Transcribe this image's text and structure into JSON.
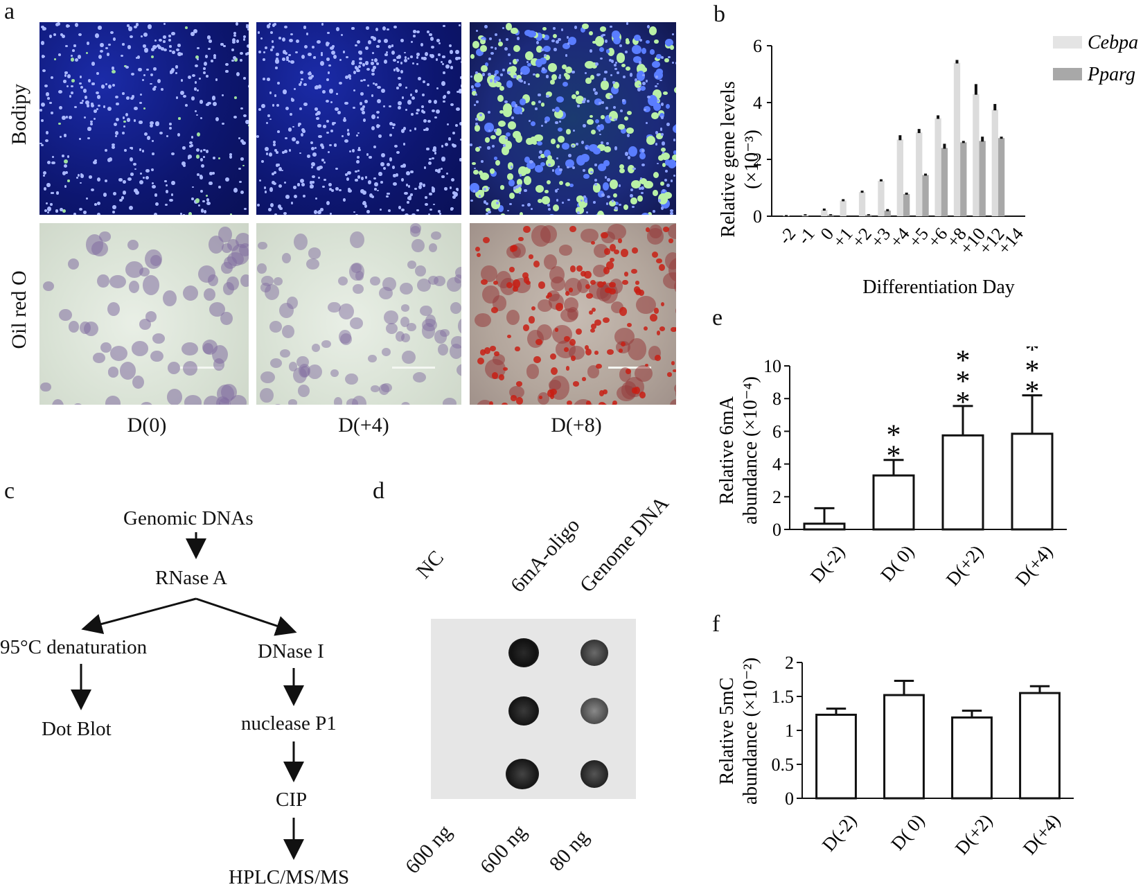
{
  "panels": {
    "a": "a",
    "b": "b",
    "c": "c",
    "d": "d",
    "e": "e",
    "f": "f"
  },
  "panel_a": {
    "row_labels": [
      "Bodipy",
      "Oil red O"
    ],
    "col_labels": [
      "D(0)",
      "D(+4)",
      "D(+8)"
    ]
  },
  "chart_data": [
    {
      "id": "b",
      "type": "bar",
      "title": "",
      "xlabel": "Differentiation Day",
      "ylabel_line1": "Relative gene levels",
      "ylabel_line2": "(×10⁻³)",
      "categories": [
        "-2",
        "-1",
        "0",
        "+1",
        "+2",
        "+3",
        "+4",
        "+5",
        "+6",
        "+8",
        "+10",
        "+12",
        "+14"
      ],
      "ylim": [
        0,
        6
      ],
      "yticks": [
        "0",
        "2",
        "4",
        "6"
      ],
      "series": [
        {
          "name": "Cebpa",
          "color": "#dcdcdc",
          "values": [
            0.02,
            0.05,
            0.22,
            0.55,
            0.85,
            1.25,
            2.7,
            2.95,
            3.45,
            5.4,
            4.3,
            3.75,
            0.0
          ],
          "errors": [
            0.02,
            0.02,
            0.05,
            0.05,
            0.05,
            0.05,
            0.15,
            0.12,
            0.1,
            0.1,
            0.35,
            0.2,
            0.0
          ]
        },
        {
          "name": "Pparg",
          "color": "#a8a8a8",
          "values": [
            0.0,
            0.0,
            0.05,
            0.0,
            0.05,
            0.2,
            0.78,
            1.45,
            2.4,
            2.6,
            2.65,
            2.75,
            0.0
          ],
          "errors": [
            0.0,
            0.0,
            0.02,
            0.0,
            0.02,
            0.05,
            0.05,
            0.05,
            0.15,
            0.05,
            0.15,
            0.05,
            0.0
          ]
        }
      ],
      "legend": [
        "Cebpa",
        "Pparg"
      ]
    },
    {
      "id": "e",
      "type": "bar",
      "ylabel_line1": "Relative 6mA",
      "ylabel_line2": "abundance (×10⁻⁴)",
      "categories": [
        "D(-2)",
        "D( 0)",
        "D(+2)",
        "D(+4)"
      ],
      "ylim": [
        0,
        10
      ],
      "yticks": [
        "0",
        "2",
        "4",
        "6",
        "8",
        "10"
      ],
      "values": [
        0.35,
        3.3,
        5.75,
        5.85
      ],
      "errors": [
        0.95,
        0.95,
        1.8,
        2.35
      ],
      "significance": [
        "",
        "**",
        "***",
        "***"
      ]
    },
    {
      "id": "f",
      "type": "bar",
      "ylabel_line1": "Relative 5mC",
      "ylabel_line2": "abundance (×10⁻²)",
      "categories": [
        "D(-2)",
        "D( 0)",
        "D(+2)",
        "D(+4)"
      ],
      "ylim": [
        0,
        2
      ],
      "yticks": [
        "0",
        "0.5",
        "1",
        "1.5",
        "2"
      ],
      "values": [
        1.23,
        1.52,
        1.19,
        1.55
      ],
      "errors": [
        0.09,
        0.21,
        0.1,
        0.1
      ]
    }
  ],
  "panel_c": {
    "genomic": "Genomic DNAs",
    "rnase": "RNase A",
    "denat": "95°C denaturation",
    "dnase": "DNase I",
    "dotblot": "Dot Blot",
    "nuclease": "nuclease P1",
    "cip": "CIP",
    "hplc": "HPLC/MS/MS"
  },
  "panel_d": {
    "headers": [
      "NC",
      "6mA-oligo",
      "Genome DNA"
    ],
    "amounts": [
      "600 ng",
      "600 ng",
      "80 ng"
    ]
  }
}
